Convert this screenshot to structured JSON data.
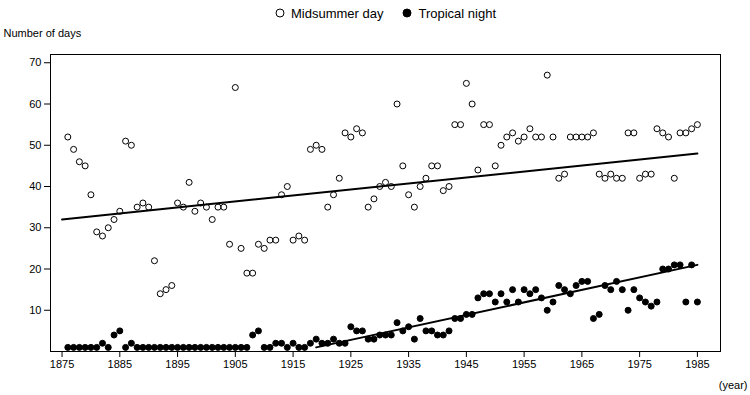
{
  "chart_data": {
    "type": "scatter",
    "xlabel": "(year)",
    "ylabel": "Number of days",
    "xlim": [
      1873,
      1989
    ],
    "ylim": [
      0,
      72
    ],
    "xticks": [
      1875,
      1885,
      1895,
      1905,
      1915,
      1925,
      1935,
      1945,
      1955,
      1965,
      1975,
      1985
    ],
    "yticks": [
      10,
      20,
      30,
      40,
      50,
      60,
      70
    ],
    "grid": false,
    "legend": "upper center",
    "series": [
      {
        "name": "Midsummer day",
        "color": "#000000",
        "marker": "open_circle",
        "x": [
          1876,
          1877,
          1878,
          1879,
          1880,
          1881,
          1882,
          1883,
          1884,
          1885,
          1886,
          1887,
          1888,
          1889,
          1890,
          1891,
          1892,
          1893,
          1894,
          1895,
          1896,
          1897,
          1898,
          1899,
          1900,
          1901,
          1902,
          1903,
          1904,
          1905,
          1906,
          1907,
          1908,
          1909,
          1910,
          1911,
          1912,
          1913,
          1914,
          1915,
          1916,
          1917,
          1918,
          1919,
          1920,
          1921,
          1922,
          1923,
          1924,
          1925,
          1926,
          1927,
          1928,
          1929,
          1930,
          1931,
          1932,
          1933,
          1934,
          1935,
          1936,
          1937,
          1938,
          1939,
          1940,
          1941,
          1942,
          1943,
          1944,
          1945,
          1946,
          1947,
          1948,
          1949,
          1950,
          1951,
          1952,
          1953,
          1954,
          1955,
          1956,
          1957,
          1958,
          1959,
          1960,
          1961,
          1962,
          1963,
          1964,
          1965,
          1966,
          1967,
          1968,
          1969,
          1970,
          1971,
          1972,
          1973,
          1974,
          1975,
          1976,
          1977,
          1978,
          1979,
          1980,
          1981,
          1982,
          1983,
          1984,
          1985
        ],
        "values": [
          52,
          49,
          46,
          45,
          38,
          29,
          28,
          30,
          32,
          34,
          51,
          50,
          35,
          36,
          35,
          22,
          14,
          15,
          16,
          36,
          35,
          41,
          34,
          36,
          35,
          32,
          35,
          35,
          26,
          64,
          25,
          19,
          19,
          26,
          25,
          27,
          27,
          38,
          40,
          27,
          28,
          27,
          49,
          50,
          49,
          35,
          38,
          42,
          53,
          52,
          54,
          53,
          35,
          37,
          40,
          41,
          40,
          60,
          45,
          38,
          35,
          40,
          42,
          45,
          45,
          39,
          40,
          55,
          55,
          65,
          60,
          44,
          55,
          55,
          45,
          50,
          52,
          53,
          51,
          52,
          54,
          52,
          52,
          67,
          52,
          42,
          43,
          52,
          52,
          52,
          52,
          53,
          43,
          42,
          43,
          42,
          42,
          53,
          53,
          42,
          43,
          43,
          54,
          53,
          52,
          42,
          53,
          53,
          54,
          55
        ]
      },
      {
        "name": "Tropical night",
        "color": "#000000",
        "marker": "circle",
        "x": [
          1876,
          1877,
          1878,
          1879,
          1880,
          1881,
          1882,
          1883,
          1884,
          1885,
          1886,
          1887,
          1888,
          1889,
          1890,
          1891,
          1892,
          1893,
          1894,
          1895,
          1896,
          1897,
          1898,
          1899,
          1900,
          1901,
          1902,
          1903,
          1904,
          1905,
          1906,
          1907,
          1908,
          1909,
          1910,
          1911,
          1912,
          1913,
          1914,
          1915,
          1916,
          1917,
          1918,
          1919,
          1920,
          1921,
          1922,
          1923,
          1924,
          1925,
          1926,
          1927,
          1928,
          1929,
          1930,
          1931,
          1932,
          1933,
          1934,
          1935,
          1936,
          1937,
          1938,
          1939,
          1940,
          1941,
          1942,
          1943,
          1944,
          1945,
          1946,
          1947,
          1948,
          1949,
          1950,
          1951,
          1952,
          1953,
          1954,
          1955,
          1956,
          1957,
          1958,
          1959,
          1960,
          1961,
          1962,
          1963,
          1964,
          1965,
          1966,
          1967,
          1968,
          1969,
          1970,
          1971,
          1972,
          1973,
          1974,
          1975,
          1976,
          1977,
          1978,
          1979,
          1980,
          1981,
          1982,
          1983,
          1984,
          1985
        ],
        "values": [
          1,
          1,
          1,
          1,
          1,
          1,
          2,
          1,
          4,
          5,
          1,
          2,
          1,
          1,
          1,
          1,
          1,
          1,
          1,
          1,
          1,
          1,
          1,
          1,
          1,
          1,
          1,
          1,
          1,
          1,
          1,
          1,
          4,
          5,
          1,
          1,
          2,
          2,
          1,
          2,
          1,
          1,
          2,
          3,
          2,
          2,
          3,
          2,
          2,
          6,
          5,
          5,
          3,
          3,
          4,
          4,
          4,
          7,
          5,
          6,
          3,
          8,
          5,
          5,
          4,
          4,
          5,
          8,
          8,
          9,
          9,
          13,
          14,
          14,
          12,
          14,
          12,
          15,
          12,
          15,
          14,
          15,
          13,
          10,
          12,
          16,
          15,
          14,
          16,
          17,
          17,
          8,
          9,
          16,
          15,
          17,
          15,
          10,
          15,
          13,
          12,
          11,
          12,
          20,
          20,
          21,
          21,
          12,
          21,
          12
        ]
      },
      {
        "type": "line",
        "color": "#000000",
        "x": [
          1875,
          1985
        ],
        "values": [
          32.0,
          48.0
        ]
      },
      {
        "type": "line",
        "color": "#000000",
        "x": [
          1919,
          1985
        ],
        "values": [
          1.0,
          21.0
        ]
      }
    ]
  }
}
